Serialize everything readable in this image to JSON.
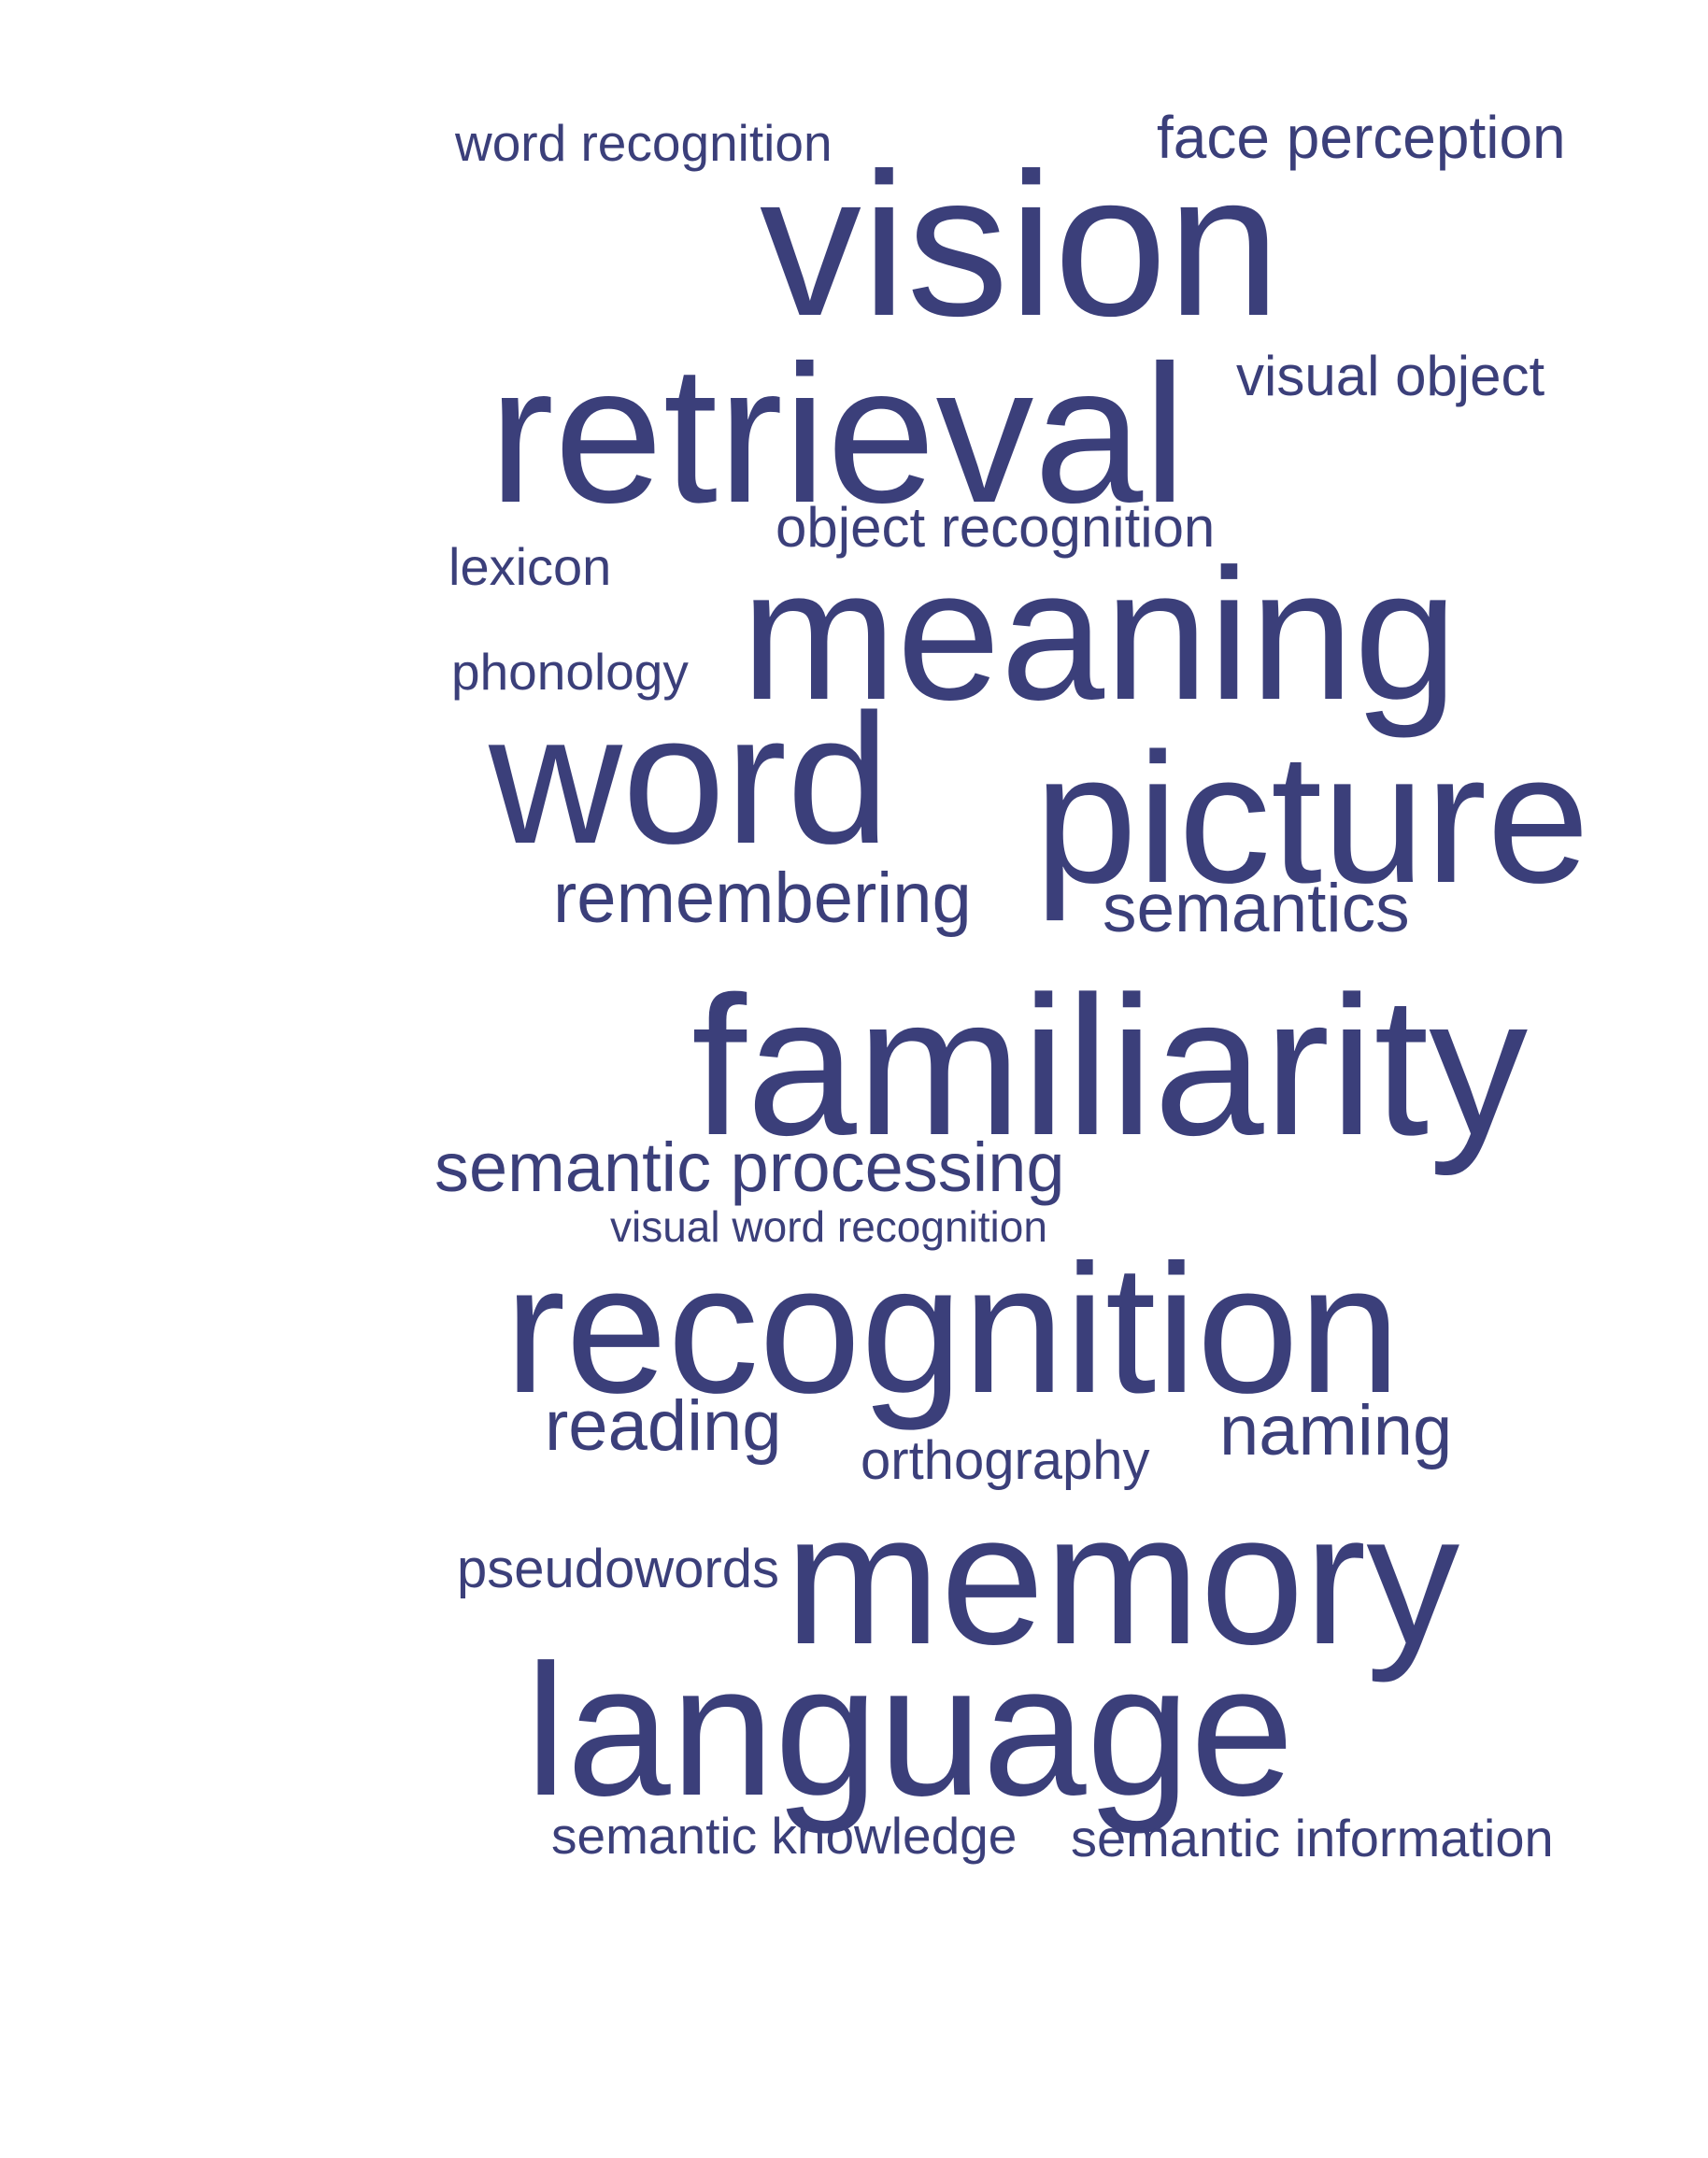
{
  "cloud": {
    "color": "#3b3f7a",
    "words": [
      "word recognition",
      "face perception",
      "vision",
      "retrieval",
      "visual object",
      "object recognition",
      "lexicon",
      "meaning",
      "phonology",
      "word",
      "picture",
      "remembering",
      "semantics",
      "familiarity",
      "semantic processing",
      "visual word recognition",
      "recognition",
      "reading",
      "naming",
      "orthography",
      "pseudowords",
      "memory",
      "language",
      "semantic knowledge",
      "semantic information"
    ]
  }
}
